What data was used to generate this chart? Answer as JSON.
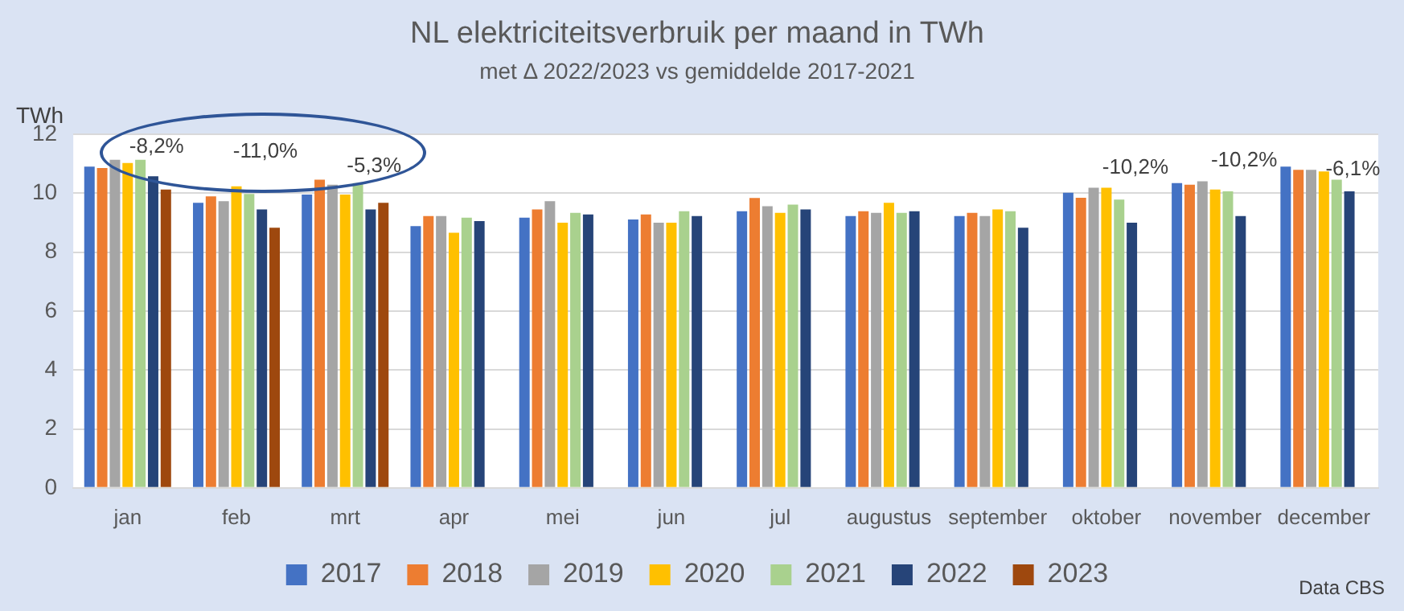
{
  "chart_data": {
    "type": "bar",
    "title": "NL elektriciteitsverbruik per maand in TWh",
    "subtitle": "met Δ 2022/2023 vs gemiddelde 2017-2021",
    "ylabel": "TWh",
    "categories": [
      "jan",
      "feb",
      "mrt",
      "apr",
      "mei",
      "jun",
      "jul",
      "augustus",
      "september",
      "oktober",
      "november",
      "december"
    ],
    "series": [
      {
        "name": "2017",
        "color": "#4472c4",
        "values": [
          10.91,
          9.68,
          9.96,
          8.89,
          9.17,
          9.11,
          9.39,
          9.23,
          9.23,
          10.02,
          10.35,
          10.91
        ]
      },
      {
        "name": "2018",
        "color": "#ed7d31",
        "values": [
          10.86,
          9.9,
          10.46,
          9.23,
          9.45,
          9.28,
          9.84,
          9.39,
          9.34,
          9.85,
          10.29,
          10.8
        ]
      },
      {
        "name": "2019",
        "color": "#a5a5a5",
        "values": [
          11.14,
          9.73,
          10.29,
          9.23,
          9.73,
          9.0,
          9.56,
          9.34,
          9.23,
          10.19,
          10.41,
          10.8
        ]
      },
      {
        "name": "2020",
        "color": "#ffc000",
        "values": [
          11.03,
          10.24,
          9.96,
          8.66,
          9.0,
          9.0,
          9.34,
          9.68,
          9.45,
          10.19,
          10.13,
          10.74
        ]
      },
      {
        "name": "2021",
        "color": "#a9d18e",
        "values": [
          11.14,
          9.98,
          10.35,
          9.17,
          9.34,
          9.39,
          9.62,
          9.34,
          9.39,
          9.79,
          10.07,
          10.46
        ]
      },
      {
        "name": "2022",
        "color": "#264478",
        "values": [
          10.58,
          9.45,
          9.45,
          9.06,
          9.28,
          9.23,
          9.45,
          9.39,
          8.83,
          9.0,
          9.23,
          10.07
        ]
      },
      {
        "name": "2023",
        "color": "#9e480e",
        "values": [
          10.13,
          8.83,
          9.68,
          null,
          null,
          null,
          null,
          null,
          null,
          null,
          null,
          null
        ]
      }
    ],
    "ylim": [
      0,
      12
    ],
    "yticks": [
      0,
      2,
      4,
      6,
      8,
      10,
      12
    ],
    "grid": "y",
    "legend": "bottom",
    "annotations": [
      "-8,2%",
      "-11,0%",
      "-5,3%",
      "-10,2%",
      "-10,2%",
      "-6,1%",
      "Data CBS"
    ]
  }
}
